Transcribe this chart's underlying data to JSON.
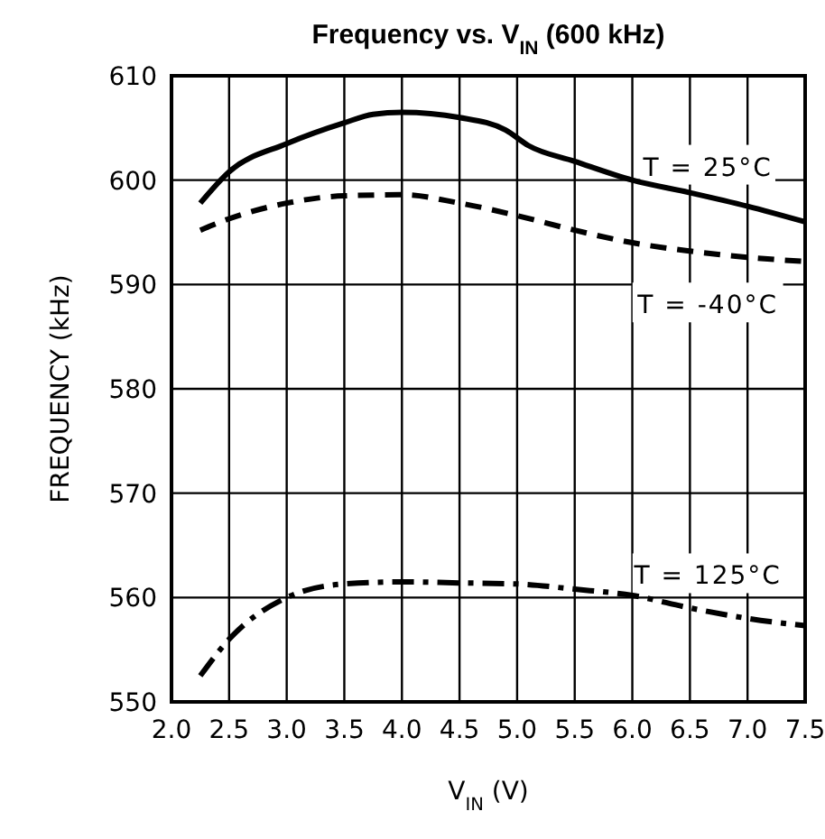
{
  "chart_data": {
    "type": "line",
    "title": "Frequency vs. V$_{IN}$ (600 kHz)",
    "xlabel": "V$_{IN}$ (V)",
    "ylabel": "FREQUENCY (kHz)",
    "xlim": [
      2.0,
      7.5
    ],
    "xticks": [
      {
        "value": 2.0,
        "label": "2.0"
      },
      2.5,
      {
        "value": 3.0,
        "label": "3.0"
      },
      3.5,
      {
        "value": 4.0,
        "label": "4.0"
      },
      4.5,
      {
        "value": 5.0,
        "label": "5.0"
      },
      5.5,
      {
        "value": 6.0,
        "label": "6.0"
      },
      6.5,
      {
        "value": 7.0,
        "label": "7.0"
      },
      7.5
    ],
    "ylim": [
      550,
      610
    ],
    "yticks": [
      550,
      560,
      570,
      580,
      590,
      600,
      610
    ],
    "grid": true,
    "x": [
      2.25,
      2.5,
      3.0,
      3.5,
      4.0,
      4.5,
      5.0,
      5.5,
      6.0,
      6.5,
      7.0,
      7.5
    ],
    "series": [
      {
        "color": "#000000",
        "line_style": "solid",
        "x": [
          2.25,
          2.5,
          3.0,
          3.5,
          3.75,
          4.0,
          4.5,
          4.9,
          5.1,
          5.5,
          6.0,
          6.5,
          7.0,
          7.5
        ],
        "values": [
          597.8,
          600.8,
          603.5,
          605.5,
          606.3,
          606.5,
          606.0,
          604.8,
          603.3,
          601.8,
          600.0,
          598.8,
          597.5,
          596.0
        ]
      },
      {
        "color": "#000000",
        "line_style": "dashed",
        "values": [
          595.2,
          596.3,
          597.8,
          598.5,
          598.6,
          597.8,
          596.6,
          595.2,
          594.0,
          593.2,
          592.6,
          592.2
        ]
      },
      {
        "color": "#000000",
        "line_style": "dashdot",
        "values": [
          552.5,
          556.0,
          560.0,
          561.3,
          561.5,
          561.4,
          561.3,
          560.8,
          560.2,
          559.0,
          558.0,
          557.3
        ]
      }
    ],
    "annotations": [
      "T = 25°C",
      "T = -40°C",
      "T = 125°C"
    ]
  }
}
